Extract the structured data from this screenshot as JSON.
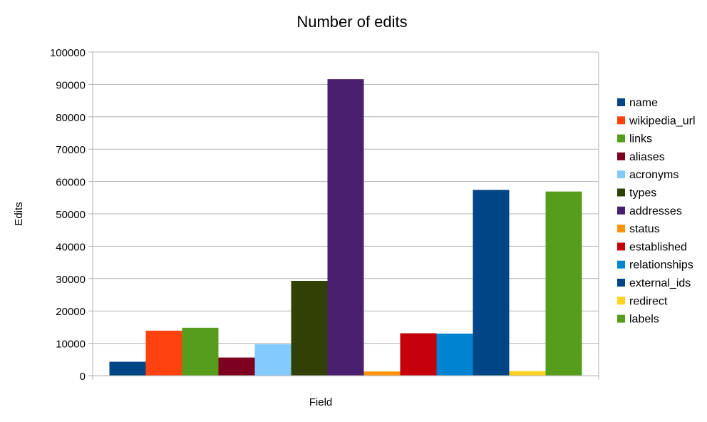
{
  "chart_data": {
    "type": "bar",
    "title": "Number of edits",
    "xlabel": "Field",
    "ylabel": "Edits",
    "ylim": [
      0,
      100000
    ],
    "yticks": [
      0,
      10000,
      20000,
      30000,
      40000,
      50000,
      60000,
      70000,
      80000,
      90000,
      100000
    ],
    "grid": true,
    "legend_position": "right",
    "series": [
      {
        "name": "name",
        "value": 4300,
        "color": "#004586"
      },
      {
        "name": "wikipedia_url",
        "value": 13900,
        "color": "#ff420e"
      },
      {
        "name": "links",
        "value": 14800,
        "color": "#579d1c"
      },
      {
        "name": "aliases",
        "value": 5600,
        "color": "#7e0021"
      },
      {
        "name": "acronyms",
        "value": 9700,
        "color": "#83caff"
      },
      {
        "name": "types",
        "value": 29300,
        "color": "#314004"
      },
      {
        "name": "addresses",
        "value": 91600,
        "color": "#4b1f6f"
      },
      {
        "name": "status",
        "value": 1300,
        "color": "#ff950e"
      },
      {
        "name": "established",
        "value": 13100,
        "color": "#c5000b"
      },
      {
        "name": "relationships",
        "value": 13000,
        "color": "#0084d1"
      },
      {
        "name": "external_ids",
        "value": 57400,
        "color": "#004586"
      },
      {
        "name": "redirect",
        "value": 1400,
        "color": "#ffd320"
      },
      {
        "name": "labels",
        "value": 56900,
        "color": "#579d1c"
      }
    ]
  }
}
